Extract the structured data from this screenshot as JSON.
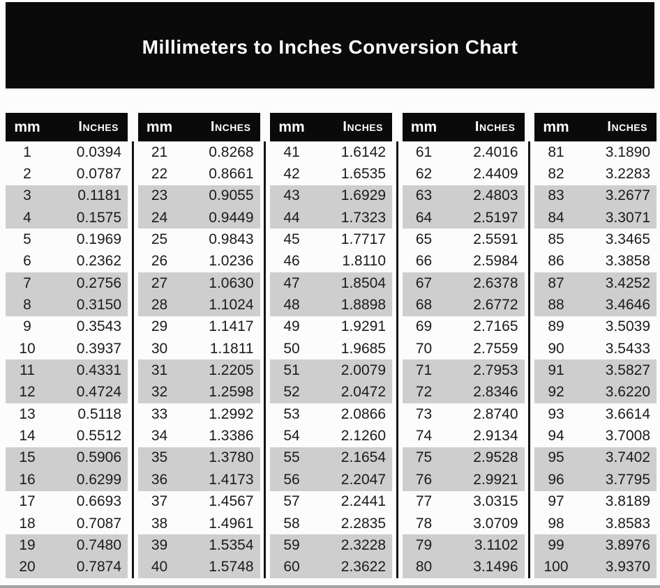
{
  "page": {
    "title": "Millimeters to Inches Conversion Chart"
  },
  "column_headers": {
    "mm": "mm",
    "inches": "Inches"
  },
  "colors": {
    "page_bg": "#fcfcfc",
    "header_bg": "#0a0a0a",
    "header_text": "#ffffff",
    "row_shade": "#cecece",
    "text": "#1b1b1b",
    "divider": "#131313",
    "bottom_rule": "#a3a3a3"
  },
  "tables": [
    {
      "mm": [
        "1",
        "2",
        "3",
        "4",
        "5",
        "6",
        "7",
        "8",
        "9",
        "10",
        "11",
        "12",
        "13",
        "14",
        "15",
        "16",
        "17",
        "18",
        "19",
        "20"
      ],
      "inches": [
        "0.0394",
        "0.0787",
        "0.1181",
        "0.1575",
        "0.1969",
        "0.2362",
        "0.2756",
        "0.3150",
        "0.3543",
        "0.3937",
        "0.4331",
        "0.4724",
        "0.5118",
        "0.5512",
        "0.5906",
        "0.6299",
        "0.6693",
        "0.7087",
        "0.7480",
        "0.7874"
      ]
    },
    {
      "mm": [
        "21",
        "22",
        "23",
        "24",
        "25",
        "26",
        "27",
        "28",
        "29",
        "30",
        "31",
        "32",
        "33",
        "34",
        "35",
        "36",
        "37",
        "38",
        "39",
        "40"
      ],
      "inches": [
        "0.8268",
        "0.8661",
        "0.9055",
        "0.9449",
        "0.9843",
        "1.0236",
        "1.0630",
        "1.1024",
        "1.1417",
        "1.1811",
        "1.2205",
        "1.2598",
        "1.2992",
        "1.3386",
        "1.3780",
        "1.4173",
        "1.4567",
        "1.4961",
        "1.5354",
        "1.5748"
      ]
    },
    {
      "mm": [
        "41",
        "42",
        "43",
        "44",
        "45",
        "46",
        "47",
        "48",
        "49",
        "50",
        "51",
        "52",
        "53",
        "54",
        "55",
        "56",
        "57",
        "58",
        "59",
        "60"
      ],
      "inches": [
        "1.6142",
        "1.6535",
        "1.6929",
        "1.7323",
        "1.7717",
        "1.8110",
        "1.8504",
        "1.8898",
        "1.9291",
        "1.9685",
        "2.0079",
        "2.0472",
        "2.0866",
        "2.1260",
        "2.1654",
        "2.2047",
        "2.2441",
        "2.2835",
        "2.3228",
        "2.3622"
      ]
    },
    {
      "mm": [
        "61",
        "62",
        "63",
        "64",
        "65",
        "66",
        "67",
        "68",
        "69",
        "70",
        "71",
        "72",
        "73",
        "74",
        "75",
        "76",
        "77",
        "78",
        "79",
        "80"
      ],
      "inches": [
        "2.4016",
        "2.4409",
        "2.4803",
        "2.5197",
        "2.5591",
        "2.5984",
        "2.6378",
        "2.6772",
        "2.7165",
        "2.7559",
        "2.7953",
        "2.8346",
        "2.8740",
        "2.9134",
        "2.9528",
        "2.9921",
        "3.0315",
        "3.0709",
        "3.1102",
        "3.1496"
      ]
    },
    {
      "mm": [
        "81",
        "82",
        "83",
        "84",
        "85",
        "86",
        "87",
        "88",
        "89",
        "90",
        "91",
        "92",
        "93",
        "94",
        "95",
        "96",
        "97",
        "98",
        "99",
        "100"
      ],
      "inches": [
        "3.1890",
        "3.2283",
        "3.2677",
        "3.3071",
        "3.3465",
        "3.3858",
        "3.4252",
        "3.4646",
        "3.5039",
        "3.5433",
        "3.5827",
        "3.6220",
        "3.6614",
        "3.7008",
        "3.7402",
        "3.7795",
        "3.8189",
        "3.8583",
        "3.8976",
        "3.9370"
      ]
    }
  ]
}
